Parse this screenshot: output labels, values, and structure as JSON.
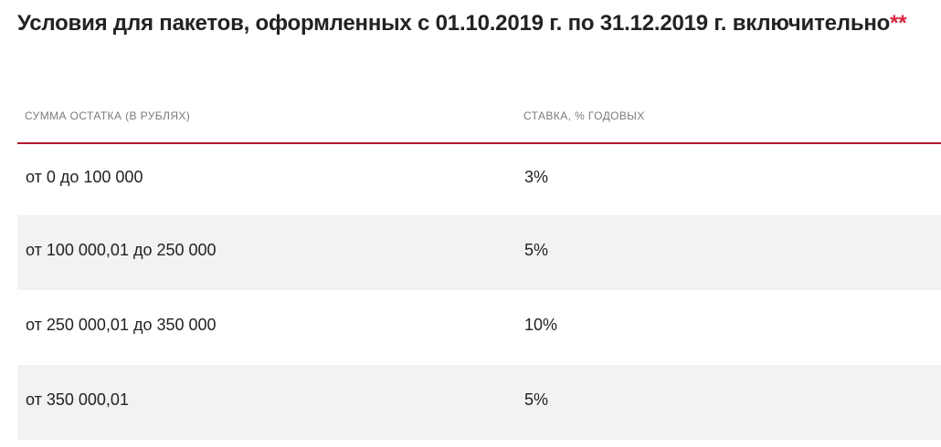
{
  "title": {
    "text": "Условия для пакетов, оформленных с 01.10.2019 г. по 31.12.2019 г. включительно",
    "asterisks": "**"
  },
  "table": {
    "headers": {
      "amount": "Сумма остатка (в рублях)",
      "rate": "Ставка, % годовых"
    },
    "rows": [
      {
        "amount": "от 0 до 100 000",
        "rate": "3%"
      },
      {
        "amount": "от 100 000,01 до 250 000",
        "rate": "5%"
      },
      {
        "amount": "от 250 000,01 до 350 000",
        "rate": "10%"
      },
      {
        "amount": "от 350 000,01",
        "rate": "5%"
      }
    ]
  },
  "colors": {
    "accent_red": "#b3172f",
    "asterisk_red": "#d7263d",
    "alt_row_bg": "#f2f2f2",
    "header_text": "#7a7a7a"
  }
}
